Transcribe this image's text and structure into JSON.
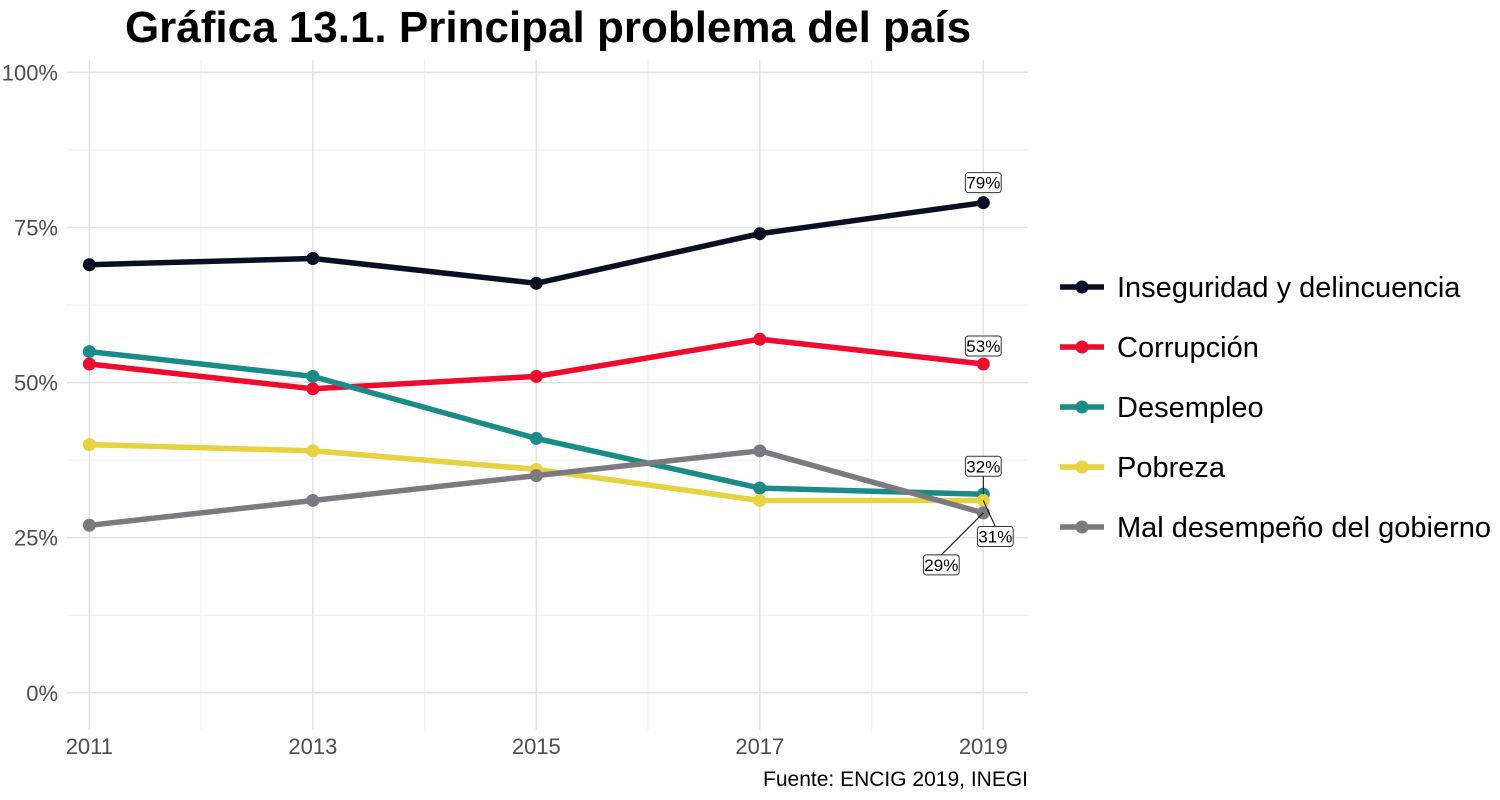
{
  "chart_data": {
    "type": "line",
    "title": "Gráfica 13.1. Principal problema del país",
    "caption": "Fuente: ENCIG 2019, INEGI",
    "xlabel": "",
    "ylabel": "",
    "x": [
      2011,
      2013,
      2015,
      2017,
      2019
    ],
    "x_tick_labels": [
      "2011",
      "2013",
      "2015",
      "2017",
      "2019"
    ],
    "xlim": [
      2010.8,
      2019.4
    ],
    "ylim": [
      -0.06,
      1.02
    ],
    "y_ticks": [
      0,
      0.25,
      0.5,
      0.75,
      1.0
    ],
    "y_tick_labels": [
      "0%",
      "25%",
      "50%",
      "75%",
      "100%"
    ],
    "grid": true,
    "legend_position": "right",
    "series": [
      {
        "name": "Inseguridad y delincuencia",
        "color": "#0a0f24",
        "values": [
          0.69,
          0.7,
          0.66,
          0.74,
          0.79
        ],
        "end_label": "79%"
      },
      {
        "name": "Corrupción",
        "color": "#ef0b2e",
        "values": [
          0.53,
          0.49,
          0.51,
          0.57,
          0.53
        ],
        "end_label": "53%"
      },
      {
        "name": "Desempleo",
        "color": "#1a8b87",
        "values": [
          0.55,
          0.51,
          0.41,
          0.33,
          0.32
        ],
        "end_label": "32%"
      },
      {
        "name": "Pobreza",
        "color": "#e6d33f",
        "values": [
          0.4,
          0.39,
          0.36,
          0.31,
          0.31
        ],
        "end_label": "31%"
      },
      {
        "name": "Mal desempeño del gobierno",
        "color": "#7b7a80",
        "values": [
          0.27,
          0.31,
          0.35,
          0.39,
          0.29
        ],
        "end_label": "29%"
      }
    ]
  }
}
